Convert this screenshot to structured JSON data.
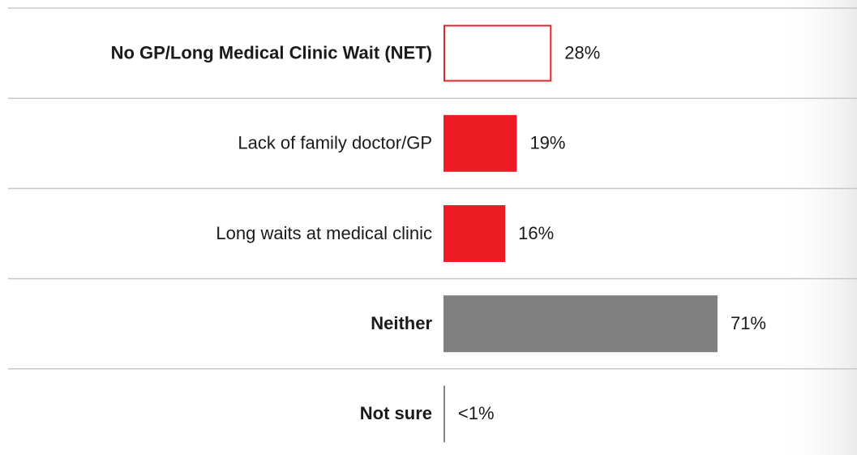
{
  "chart_data": {
    "type": "hbar",
    "categories": [
      "No GP/Long Medical Clinic Wait (NET)",
      "Lack of family doctor/GP",
      "Long waits at medical clinic",
      "Neither",
      "Not sure"
    ],
    "values": [
      28,
      19,
      16,
      71,
      0.4
    ],
    "value_labels": [
      "28%",
      "19%",
      "16%",
      "71%",
      "<1%"
    ],
    "colors": [
      "#e3262b",
      "#ed1c24",
      "#ed1c24",
      "#808080",
      "#808080"
    ],
    "outlined": [
      true,
      false,
      false,
      false,
      false
    ],
    "bold": [
      true,
      false,
      false,
      true,
      true
    ],
    "xlim": [
      0,
      100
    ]
  }
}
